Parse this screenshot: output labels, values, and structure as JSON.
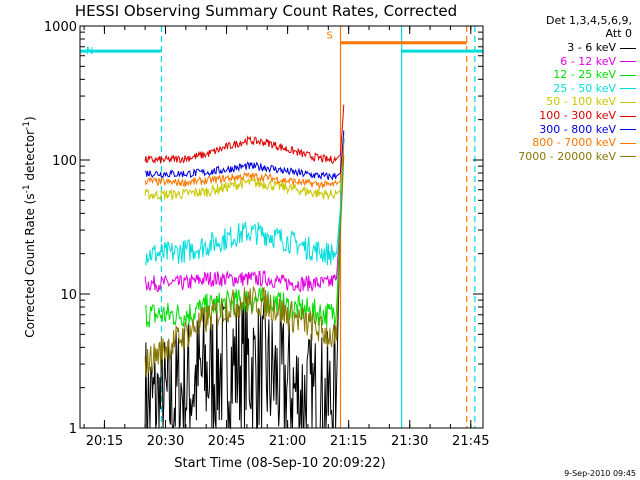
{
  "chart_data": {
    "type": "line",
    "title": "HESSI Observing Summary Count Rates, Corrected",
    "xlabel": "Start Time (08-Sep-10 20:09:22)",
    "ylabel": "Corrected Count Rate (s",
    "ylabel_sup": "-1",
    "ylabel_mid": " detector",
    "ylabel_end": ")",
    "y_scale": "log",
    "ylim": [
      1,
      1000
    ],
    "xlim": [
      "20:09",
      "21:48"
    ],
    "x_ticks": [
      "20:15",
      "20:30",
      "20:45",
      "21:00",
      "21:15",
      "21:30",
      "21:45"
    ],
    "y_ticks": [
      "1",
      "10",
      "100",
      "1000"
    ],
    "legend_header": [
      "Det 1,3,4,5,6,9,",
      "Att 0"
    ],
    "series": [
      {
        "name": "3 - 6 keV",
        "color": "#000000",
        "x": [
          "20:25",
          "20:30",
          "20:35",
          "20:40",
          "20:45",
          "20:50",
          "20:55",
          "21:00",
          "21:05",
          "21:10",
          "21:12",
          "21:13",
          "21:14"
        ],
        "values": [
          1.5,
          1.5,
          2.0,
          2.5,
          3.0,
          3.0,
          2.5,
          2.0,
          1.6,
          1.5,
          2.0,
          40,
          200
        ]
      },
      {
        "name": "6 - 12 keV",
        "color": "#e000e0",
        "x": [
          "20:25",
          "20:30",
          "20:35",
          "20:40",
          "20:45",
          "20:50",
          "20:55",
          "21:00",
          "21:05",
          "21:10",
          "21:12",
          "21:13",
          "21:14"
        ],
        "values": [
          12,
          12,
          12,
          13,
          13,
          13,
          13,
          12,
          12,
          12,
          13,
          40,
          200
        ]
      },
      {
        "name": "12 - 25 keV",
        "color": "#00dd00",
        "x": [
          "20:25",
          "20:30",
          "20:35",
          "20:40",
          "20:45",
          "20:50",
          "20:55",
          "21:00",
          "21:05",
          "21:10",
          "21:12",
          "21:13",
          "21:14"
        ],
        "values": [
          7,
          7,
          7,
          8,
          8.5,
          9,
          9,
          8,
          7.5,
          7,
          7.5,
          40,
          200
        ]
      },
      {
        "name": "25 - 50 keV",
        "color": "#00dddd",
        "x": [
          "20:25",
          "20:30",
          "20:35",
          "20:40",
          "20:45",
          "20:50",
          "20:55",
          "21:00",
          "21:05",
          "21:10",
          "21:12",
          "21:13",
          "21:14"
        ],
        "values": [
          20,
          20,
          21,
          23,
          26,
          29,
          28,
          25,
          22,
          20,
          20,
          45,
          220
        ]
      },
      {
        "name": "50 - 100 keV",
        "color": "#c8c800",
        "x": [
          "20:25",
          "20:30",
          "20:35",
          "20:40",
          "20:45",
          "20:50",
          "20:55",
          "21:00",
          "21:05",
          "21:10",
          "21:12",
          "21:13",
          "21:14"
        ],
        "values": [
          55,
          55,
          56,
          58,
          63,
          68,
          66,
          62,
          58,
          55,
          56,
          60,
          200
        ]
      },
      {
        "name": "100 - 300 keV",
        "color": "#dd0000",
        "x": [
          "20:25",
          "20:30",
          "20:35",
          "20:40",
          "20:45",
          "20:50",
          "20:55",
          "21:00",
          "21:05",
          "21:10",
          "21:12",
          "21:13",
          "21:14"
        ],
        "values": [
          100,
          100,
          103,
          110,
          125,
          140,
          135,
          120,
          108,
          100,
          102,
          110,
          320
        ]
      },
      {
        "name": "300 - 800 keV",
        "color": "#0000dd",
        "x": [
          "20:25",
          "20:30",
          "20:35",
          "20:40",
          "20:45",
          "20:50",
          "20:55",
          "21:00",
          "21:05",
          "21:10",
          "21:12",
          "21:13",
          "21:14"
        ],
        "values": [
          80,
          79,
          79,
          81,
          85,
          90,
          88,
          82,
          78,
          75,
          76,
          80,
          200
        ]
      },
      {
        "name": "800 - 7000 keV",
        "color": "#ff7700",
        "x": [
          "20:25",
          "20:30",
          "20:35",
          "20:40",
          "20:45",
          "20:50",
          "20:55",
          "21:00",
          "21:05",
          "21:10",
          "21:12",
          "21:13",
          "21:14"
        ],
        "values": [
          70,
          68,
          68,
          70,
          73,
          76,
          74,
          70,
          67,
          65,
          66,
          70,
          150
        ]
      },
      {
        "name": "7000 - 20000 keV",
        "color": "#887700",
        "x": [
          "20:25",
          "20:30",
          "20:35",
          "20:40",
          "20:45",
          "20:50",
          "20:55",
          "21:00",
          "21:05",
          "21:10",
          "21:12",
          "21:13",
          "21:14"
        ],
        "values": [
          3,
          4,
          5,
          6.5,
          8,
          9,
          8.5,
          7,
          6,
          5,
          4.5,
          30,
          150
        ]
      }
    ],
    "flags": [
      {
        "label": "N",
        "color": "#00dddd",
        "level": 650,
        "x_start": "20:09",
        "x_end": "20:29"
      },
      {
        "label": "",
        "color": "#00dddd",
        "level": 650,
        "x_start": "21:28",
        "x_end": "21:48"
      },
      {
        "label": "S",
        "color": "#ff7700",
        "level": 750,
        "x_start": "21:13",
        "x_end": "21:44"
      }
    ],
    "vlines": [
      {
        "x": "20:29",
        "color": "#00dddd",
        "dash": true
      },
      {
        "x": "21:13",
        "color": "#ff7700",
        "dash": false
      },
      {
        "x": "21:28",
        "color": "#00dddd",
        "dash": false
      },
      {
        "x": "21:44",
        "color": "#ff7700",
        "dash": true
      },
      {
        "x": "21:46",
        "color": "#00dddd",
        "dash": true
      }
    ],
    "footer": "9-Sep-2010 09:45"
  }
}
